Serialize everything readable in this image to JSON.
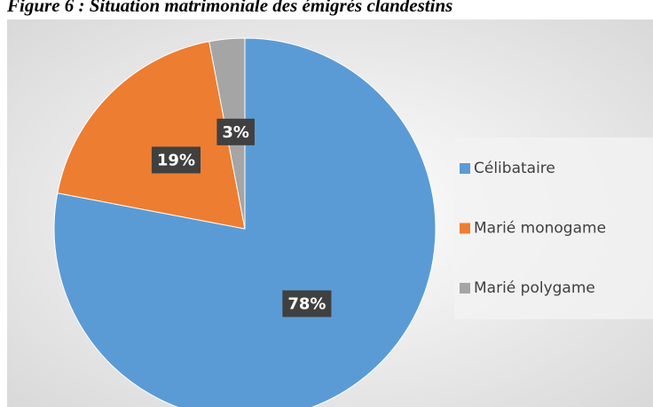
{
  "chart_data": {
    "type": "pie",
    "title": "Figure 6 : Situation matrimoniale des émigrés clandestins",
    "categories": [
      "Célibataire",
      "Marié monogame",
      "Marié polygame"
    ],
    "values": [
      78,
      19,
      3
    ],
    "value_labels": [
      "78%",
      "19%",
      "3%"
    ],
    "colors": [
      "#5b9bd5",
      "#ed7d31",
      "#a5a5a5"
    ],
    "legend": "right"
  }
}
